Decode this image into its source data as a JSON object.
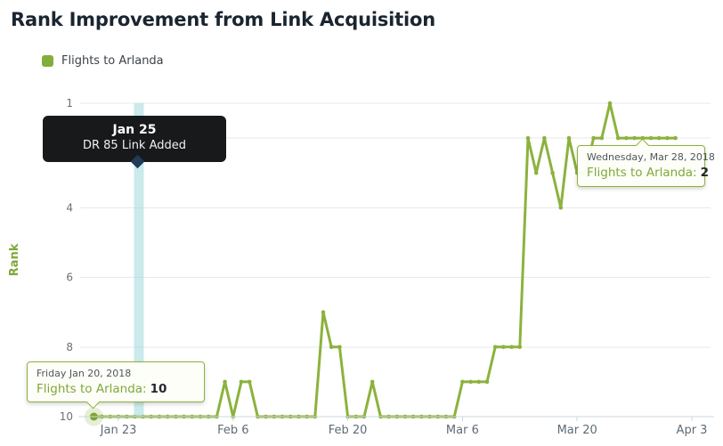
{
  "title": "Rank Improvement from Link Acquisition",
  "legend": {
    "label": "Flights to Arlanda",
    "color": "#85ad3b"
  },
  "annotation": {
    "date_label": "Jan 25",
    "text": "DR 85 Link Added",
    "band_color": "#9fd9dd"
  },
  "tooltip_start": {
    "date": "Friday Jan 20, 2018",
    "series_label": "Flights to Arlanda:",
    "value": "10"
  },
  "tooltip_end": {
    "date": "Wednesday, Mar 28, 2018",
    "series_label": "Flights to Arlanda:",
    "value": "2"
  },
  "chart_data": {
    "type": "line",
    "title": "Rank Improvement from Link Acquisition",
    "series_name": "Flights to Arlanda",
    "line_color": "#8cb23d",
    "xlabel": "",
    "ylabel": "Rank",
    "y_axis": {
      "inverted": true,
      "range": [
        1,
        10
      ],
      "ticks": [
        1,
        2,
        4,
        6,
        8,
        10
      ],
      "grid": true
    },
    "x_ticks": [
      {
        "label": "Jan 23",
        "day_index": 3
      },
      {
        "label": "Feb 6",
        "day_index": 17
      },
      {
        "label": "Feb 20",
        "day_index": 31
      },
      {
        "label": "Mar 6",
        "day_index": 45
      },
      {
        "label": "Mar 20",
        "day_index": 59
      },
      {
        "label": "Apr 3",
        "day_index": 73
      }
    ],
    "annotation_day_index": 5.5,
    "start_point_day_index": 0,
    "end_tooltip_day_index": 67,
    "x": [
      "Jan 20",
      "Jan 21",
      "Jan 22",
      "Jan 23",
      "Jan 24",
      "Jan 25",
      "Jan 26",
      "Jan 27",
      "Jan 28",
      "Jan 29",
      "Jan 30",
      "Jan 31",
      "Feb 1",
      "Feb 2",
      "Feb 3",
      "Feb 4",
      "Feb 5",
      "Feb 6",
      "Feb 7",
      "Feb 8",
      "Feb 9",
      "Feb 10",
      "Feb 11",
      "Feb 12",
      "Feb 13",
      "Feb 14",
      "Feb 15",
      "Feb 16",
      "Feb 17",
      "Feb 18",
      "Feb 19",
      "Feb 20",
      "Feb 21",
      "Feb 22",
      "Feb 23",
      "Feb 24",
      "Feb 25",
      "Feb 26",
      "Feb 27",
      "Feb 28",
      "Mar 1",
      "Mar 2",
      "Mar 3",
      "Mar 4",
      "Mar 5",
      "Mar 6",
      "Mar 7",
      "Mar 8",
      "Mar 9",
      "Mar 10",
      "Mar 11",
      "Mar 12",
      "Mar 13",
      "Mar 14",
      "Mar 15",
      "Mar 16",
      "Mar 17",
      "Mar 18",
      "Mar 19",
      "Mar 20",
      "Mar 21",
      "Mar 22",
      "Mar 23",
      "Mar 24",
      "Mar 25",
      "Mar 26",
      "Mar 27",
      "Mar 28",
      "Mar 29",
      "Mar 30",
      "Mar 31",
      "Apr 1"
    ],
    "values": [
      10,
      10,
      10,
      10,
      10,
      10,
      10,
      10,
      10,
      10,
      10,
      10,
      10,
      10,
      10,
      10,
      9,
      10,
      9,
      9,
      10,
      10,
      10,
      10,
      10,
      10,
      10,
      10,
      7,
      8,
      8,
      10,
      10,
      10,
      9,
      10,
      10,
      10,
      10,
      10,
      10,
      10,
      10,
      10,
      10,
      9,
      9,
      9,
      9,
      8,
      8,
      8,
      8,
      2,
      3,
      2,
      3,
      4,
      2,
      3,
      3,
      2,
      2,
      1,
      2,
      2,
      2,
      2,
      2,
      2,
      2,
      2
    ]
  }
}
